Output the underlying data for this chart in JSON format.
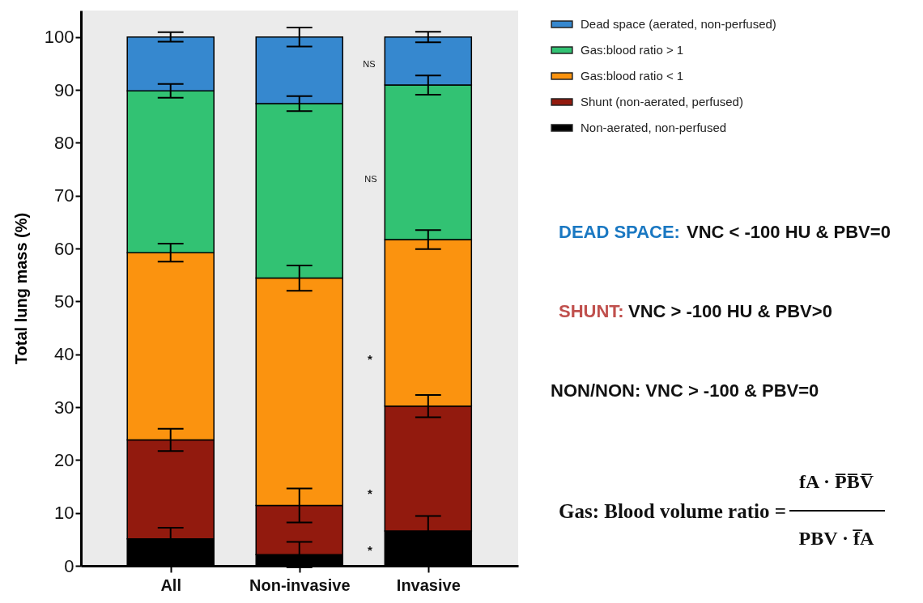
{
  "chart_data": {
    "type": "bar",
    "stacked": true,
    "ylabel": "Total lung mass (%)",
    "categories": [
      "All",
      "Non-invasive",
      "Invasive"
    ],
    "series": [
      {
        "name": "Non-aerated, non-perfused",
        "color": "#000000",
        "values": [
          5.1,
          2.1,
          6.6
        ],
        "errors": [
          2.1,
          2.4,
          2.8
        ]
      },
      {
        "name": "Shunt (non-aerated, perfused)",
        "color": "#921a0e",
        "values": [
          18.7,
          9.3,
          23.6
        ],
        "errors": [
          2.1,
          3.2,
          2.1
        ]
      },
      {
        "name": "Gas:blood ratio < 1",
        "color": "#fb930f",
        "values": [
          35.4,
          43.0,
          31.5
        ],
        "errors": [
          1.7,
          2.4,
          1.8
        ]
      },
      {
        "name": "Gas:blood ratio > 1",
        "color": "#32c273",
        "values": [
          30.6,
          33.0,
          29.2
        ],
        "errors": [
          1.3,
          1.4,
          1.8
        ]
      },
      {
        "name": "Dead space (aerated, non-perfused)",
        "color": "#3688cf",
        "values": [
          10.2,
          12.6,
          9.1
        ],
        "errors": [
          0.9,
          1.8,
          1.0
        ]
      }
    ],
    "ylim": [
      0,
      105
    ],
    "yticks": [
      0,
      10,
      20,
      30,
      40,
      50,
      60,
      70,
      80,
      90,
      100
    ],
    "grid": false,
    "legend": "top right",
    "annotations": [
      "NS",
      "NS",
      "*",
      "*",
      "*",
      "DEAD SPACE:",
      "VNC < -100 HU & PBV=0",
      "SHUNT:",
      "VNC > -100 HU & PBV>0",
      "NON/NON: VNC > -100 & PBV=0",
      "Gas: Blood volume ratio =",
      "fA · P̅B̅V̅",
      "PBV · f̅A"
    ]
  }
}
